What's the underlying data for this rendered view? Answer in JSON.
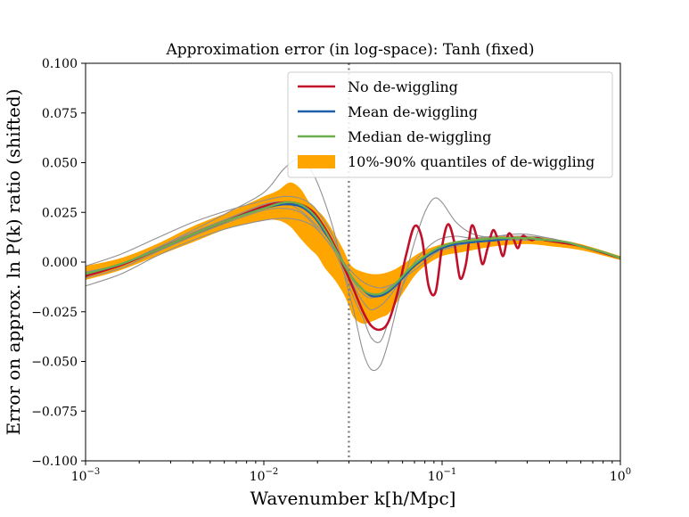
{
  "chart_data": {
    "type": "line",
    "title": "Approximation error (in log-space): Tanh (fixed)",
    "xlabel": "Wavenumber k[h/Mpc]",
    "ylabel": "Error on approx. ln P(k) ratio (shifted)",
    "xscale": "log",
    "xlim": [
      0.001,
      1.0
    ],
    "ylim": [
      -0.1,
      0.1
    ],
    "x_ticks": [
      0.001,
      0.01,
      0.1,
      1.0
    ],
    "x_tick_labels": [
      "10",
      "10",
      "10",
      "10"
    ],
    "x_tick_exponents": [
      "−3",
      "−2",
      "−1",
      "0"
    ],
    "y_ticks": [
      -0.1,
      -0.075,
      -0.05,
      -0.025,
      0.0,
      0.025,
      0.05,
      0.075,
      0.1
    ],
    "y_tick_labels": [
      "−0.100",
      "−0.075",
      "−0.050",
      "−0.025",
      "0.000",
      "0.025",
      "0.050",
      "0.075",
      "0.100"
    ],
    "vertical_line": {
      "x": 0.03,
      "style": "dotted",
      "color": "#808080"
    },
    "legend": {
      "position": "top-right",
      "entries": [
        {
          "label": "No de-wiggling",
          "color": "#c0102a",
          "kind": "line"
        },
        {
          "label": "Mean de-wiggling",
          "color": "#1f5fa8",
          "kind": "line"
        },
        {
          "label": "Median de-wiggling",
          "color": "#6ab04c",
          "kind": "line"
        },
        {
          "label": "10%-90% quantiles of de-wiggling",
          "color": "#ffa500",
          "kind": "patch"
        }
      ]
    },
    "series": [
      {
        "name": "No de-wiggling",
        "color": "#c0102a",
        "x": [
          0.001,
          0.00158,
          0.0025,
          0.004,
          0.0063,
          0.01,
          0.013,
          0.016,
          0.019,
          0.022,
          0.025,
          0.028,
          0.032,
          0.036,
          0.04,
          0.045,
          0.05,
          0.056,
          0.063,
          0.07,
          0.077,
          0.084,
          0.092,
          0.1,
          0.108,
          0.117,
          0.126,
          0.136,
          0.146,
          0.157,
          0.168,
          0.18,
          0.193,
          0.206,
          0.22,
          0.235,
          0.25,
          0.266,
          0.282,
          0.3,
          0.32,
          0.34,
          0.38,
          0.45,
          0.6,
          1.0
        ],
        "y": [
          -0.007,
          -0.0015,
          0.006,
          0.014,
          0.021,
          0.028,
          0.03,
          0.029,
          0.025,
          0.017,
          0.008,
          -0.002,
          -0.014,
          -0.025,
          -0.032,
          -0.034,
          -0.03,
          -0.016,
          0.004,
          0.018,
          0.012,
          -0.012,
          -0.015,
          0.008,
          0.019,
          0.01,
          -0.008,
          -0.001,
          0.018,
          0.012,
          -0.001,
          0.007,
          0.016,
          0.011,
          0.003,
          0.014,
          0.012,
          0.007,
          0.013,
          0.012,
          0.011,
          0.012,
          0.011,
          0.01,
          0.008,
          0.002
        ]
      },
      {
        "name": "Mean de-wiggling",
        "color": "#1f5fa8",
        "x": [
          0.001,
          0.00158,
          0.0025,
          0.004,
          0.0063,
          0.01,
          0.013,
          0.016,
          0.019,
          0.022,
          0.025,
          0.028,
          0.032,
          0.036,
          0.04,
          0.045,
          0.05,
          0.056,
          0.063,
          0.07,
          0.08,
          0.09,
          0.1,
          0.12,
          0.15,
          0.2,
          0.25,
          0.3,
          0.4,
          0.5,
          0.6,
          0.8,
          1.0
        ],
        "y": [
          -0.006,
          -0.001,
          0.006,
          0.014,
          0.021,
          0.027,
          0.029,
          0.028,
          0.023,
          0.015,
          0.007,
          -0.001,
          -0.009,
          -0.014,
          -0.017,
          -0.017,
          -0.015,
          -0.011,
          -0.006,
          -0.002,
          0.002,
          0.005,
          0.007,
          0.009,
          0.01,
          0.011,
          0.012,
          0.012,
          0.011,
          0.01,
          0.008,
          0.005,
          0.002
        ]
      },
      {
        "name": "Median de-wiggling",
        "color": "#6ab04c",
        "x": [
          0.001,
          0.00158,
          0.0025,
          0.004,
          0.0063,
          0.01,
          0.013,
          0.016,
          0.019,
          0.022,
          0.025,
          0.028,
          0.032,
          0.036,
          0.04,
          0.045,
          0.05,
          0.056,
          0.063,
          0.07,
          0.08,
          0.09,
          0.1,
          0.12,
          0.15,
          0.2,
          0.25,
          0.3,
          0.4,
          0.5,
          0.6,
          0.8,
          1.0
        ],
        "y": [
          -0.006,
          -0.001,
          0.006,
          0.014,
          0.021,
          0.027,
          0.03,
          0.029,
          0.024,
          0.016,
          0.007,
          -0.001,
          -0.009,
          -0.014,
          -0.016,
          -0.016,
          -0.014,
          -0.01,
          -0.005,
          -0.001,
          0.003,
          0.006,
          0.008,
          0.01,
          0.011,
          0.012,
          0.012,
          0.012,
          0.011,
          0.01,
          0.008,
          0.005,
          0.002
        ]
      }
    ],
    "quantile_band": {
      "name": "10%-90% quantiles of de-wiggling",
      "color": "#ffa500",
      "x": [
        0.001,
        0.00158,
        0.0025,
        0.004,
        0.0063,
        0.008,
        0.01,
        0.012,
        0.014,
        0.016,
        0.018,
        0.02,
        0.022,
        0.025,
        0.028,
        0.03,
        0.032,
        0.036,
        0.04,
        0.045,
        0.05,
        0.056,
        0.063,
        0.07,
        0.08,
        0.1,
        0.13,
        0.2,
        0.3,
        0.4,
        0.6,
        1.0
      ],
      "low": [
        -0.009,
        -0.004,
        0.003,
        0.01,
        0.017,
        0.019,
        0.021,
        0.021,
        0.018,
        0.012,
        0.007,
        0.003,
        -0.003,
        -0.009,
        -0.016,
        -0.022,
        -0.028,
        -0.031,
        -0.03,
        -0.028,
        -0.026,
        -0.02,
        -0.013,
        -0.007,
        -0.002,
        0.003,
        0.005,
        0.008,
        0.009,
        0.008,
        0.006,
        0.001
      ],
      "high": [
        -0.002,
        0.002,
        0.009,
        0.018,
        0.025,
        0.029,
        0.033,
        0.036,
        0.04,
        0.037,
        0.03,
        0.026,
        0.022,
        0.014,
        0.006,
        0.0,
        -0.003,
        -0.005,
        -0.006,
        -0.006,
        -0.005,
        -0.003,
        0.0,
        0.003,
        0.006,
        0.009,
        0.011,
        0.013,
        0.013,
        0.012,
        0.009,
        0.003
      ]
    },
    "individual_curves": {
      "color": "#909090",
      "x": [
        0.001,
        0.00158,
        0.0025,
        0.004,
        0.0063,
        0.01,
        0.013,
        0.016,
        0.019,
        0.022,
        0.025,
        0.028,
        0.032,
        0.036,
        0.04,
        0.045,
        0.05,
        0.056,
        0.063,
        0.07,
        0.08,
        0.09,
        0.1,
        0.12,
        0.15,
        0.2,
        0.25,
        0.3,
        0.4,
        0.5,
        0.6,
        0.8,
        1.0
      ],
      "curves": [
        [
          -0.005,
          -0.001,
          0.007,
          0.016,
          0.025,
          0.035,
          0.047,
          0.052,
          0.044,
          0.03,
          0.014,
          -0.005,
          -0.025,
          -0.045,
          -0.054,
          -0.052,
          -0.04,
          -0.022,
          -0.005,
          0.01,
          0.025,
          0.032,
          0.03,
          0.02,
          0.014,
          0.012,
          0.011,
          0.012,
          0.011,
          0.01,
          0.008,
          0.005,
          0.002
        ],
        [
          -0.012,
          -0.006,
          0.003,
          0.011,
          0.017,
          0.021,
          0.022,
          0.021,
          0.018,
          0.012,
          0.005,
          -0.005,
          -0.018,
          -0.028,
          -0.038,
          -0.04,
          -0.03,
          -0.018,
          -0.008,
          0.0,
          0.006,
          0.01,
          0.012,
          0.013,
          0.012,
          0.013,
          0.014,
          0.014,
          0.012,
          0.01,
          0.008,
          0.005,
          0.002
        ],
        [
          -0.002,
          0.004,
          0.012,
          0.02,
          0.026,
          0.031,
          0.033,
          0.032,
          0.028,
          0.02,
          0.011,
          0.0,
          -0.01,
          -0.016,
          -0.018,
          -0.016,
          -0.013,
          -0.01,
          -0.007,
          -0.004,
          0.0,
          0.004,
          0.006,
          0.008,
          0.01,
          0.011,
          0.011,
          0.011,
          0.011,
          0.01,
          0.008,
          0.005,
          0.002
        ],
        [
          -0.008,
          -0.003,
          0.005,
          0.013,
          0.02,
          0.026,
          0.027,
          0.025,
          0.019,
          0.012,
          0.006,
          0.0,
          -0.006,
          -0.01,
          -0.012,
          -0.013,
          -0.012,
          -0.01,
          -0.006,
          -0.002,
          0.002,
          0.005,
          0.008,
          0.01,
          0.012,
          0.013,
          0.013,
          0.013,
          0.012,
          0.01,
          0.008,
          0.005,
          0.002
        ],
        [
          -0.006,
          -0.001,
          0.007,
          0.015,
          0.022,
          0.029,
          0.03,
          0.026,
          0.02,
          0.014,
          0.007,
          -0.002,
          -0.012,
          -0.02,
          -0.024,
          -0.022,
          -0.018,
          -0.012,
          -0.006,
          -0.001,
          0.003,
          0.006,
          0.008,
          0.009,
          0.01,
          0.011,
          0.012,
          0.012,
          0.011,
          0.01,
          0.008,
          0.005,
          0.002
        ]
      ]
    }
  }
}
